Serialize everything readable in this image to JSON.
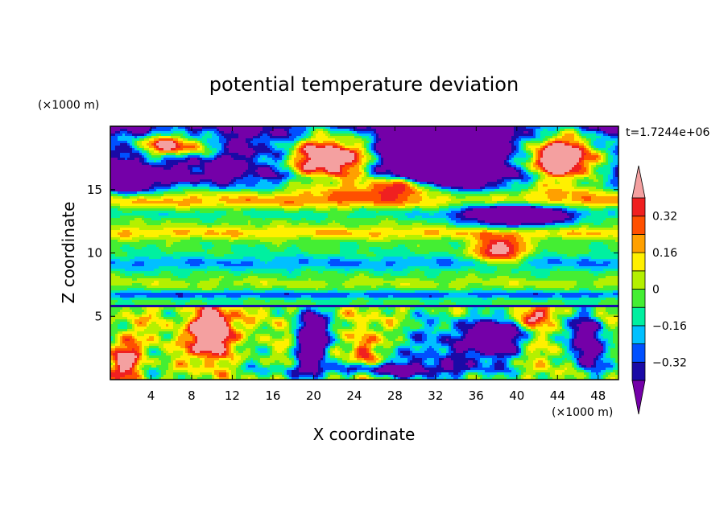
{
  "chart_data": {
    "type": "heatmap",
    "title": "potential temperature deviation",
    "xlabel": "X coordinate",
    "ylabel": "Z coordinate",
    "x_unit_label": "(×1000 m)",
    "y_unit_label": "(×1000 m)",
    "time_label": "t=1.7244e+06",
    "xlim": [
      0,
      50
    ],
    "ylim": [
      0,
      20
    ],
    "x_ticks": [
      4,
      8,
      12,
      16,
      20,
      24,
      28,
      32,
      36,
      40,
      44,
      48
    ],
    "y_ticks": [
      5,
      10,
      15
    ],
    "colorbar": {
      "levels": [
        -0.4,
        -0.32,
        -0.24,
        -0.16,
        -0.08,
        0,
        0.08,
        0.16,
        0.24,
        0.32,
        0.4
      ],
      "tick_labels": [
        "0.32",
        "0.16",
        "0",
        "−0.16",
        "−0.32"
      ],
      "tick_values": [
        0.32,
        0.16,
        0,
        -0.16,
        -0.32
      ],
      "colors_low_to_high": [
        "#7400a8",
        "#1a0aa6",
        "#0050ff",
        "#00c0ff",
        "#00f0a0",
        "#44ee33",
        "#b4f000",
        "#fff000",
        "#ffa000",
        "#ff5000",
        "#f02020",
        "#f4a0a0"
      ],
      "extend": "both"
    }
  }
}
